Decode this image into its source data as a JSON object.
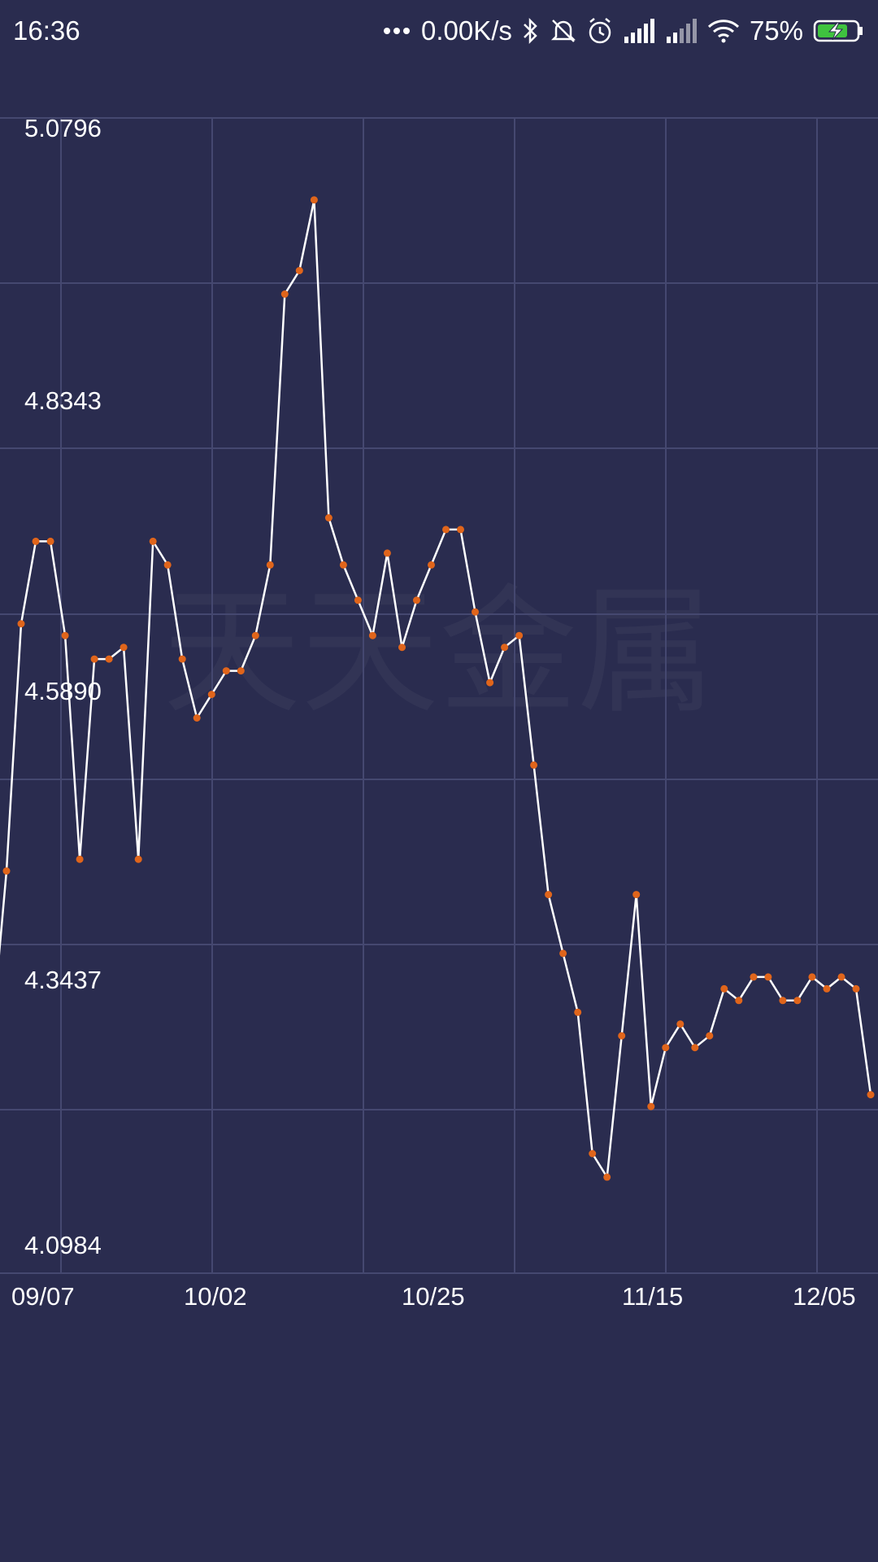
{
  "status_bar": {
    "time": "16:36",
    "network_speed": "0.00K/s",
    "battery": "75%",
    "icons": [
      "more-dots-icon",
      "bluetooth-icon",
      "alarm-off-icon",
      "alarm-clock-icon",
      "signal-icon",
      "signal-2-icon",
      "wifi-icon",
      "battery-charging-icon"
    ]
  },
  "watermark": "天天金属",
  "colors": {
    "background": "#2a2c4f",
    "grid": "#454870",
    "line": "#ffffff",
    "point": "#e0651b"
  },
  "chart_data": {
    "type": "line",
    "y_ticks": [
      "5.0796",
      "4.8343",
      "4.5890",
      "4.3437",
      "4.0984"
    ],
    "x_ticks": [
      "09/07",
      "10/02",
      "10/25",
      "11/15",
      "12/05"
    ],
    "ylim": [
      4.0984,
      5.0796
    ],
    "grid": true,
    "series": [
      {
        "values": [
          4.3,
          4.44,
          4.65,
          4.72,
          4.72,
          4.64,
          4.45,
          4.62,
          4.62,
          4.63,
          4.45,
          4.72,
          4.7,
          4.62,
          4.57,
          4.59,
          4.61,
          4.61,
          4.64,
          4.7,
          4.93,
          4.95,
          5.01,
          4.74,
          4.7,
          4.67,
          4.64,
          4.71,
          4.63,
          4.67,
          4.7,
          4.73,
          4.73,
          4.66,
          4.6,
          4.63,
          4.64,
          4.53,
          4.42,
          4.37,
          4.32,
          4.2,
          4.18,
          4.3,
          4.42,
          4.24,
          4.29,
          4.31,
          4.29,
          4.3,
          4.34,
          4.33,
          4.35,
          4.35,
          4.33,
          4.33,
          4.35,
          4.34,
          4.35,
          4.34,
          4.25
        ]
      }
    ]
  }
}
